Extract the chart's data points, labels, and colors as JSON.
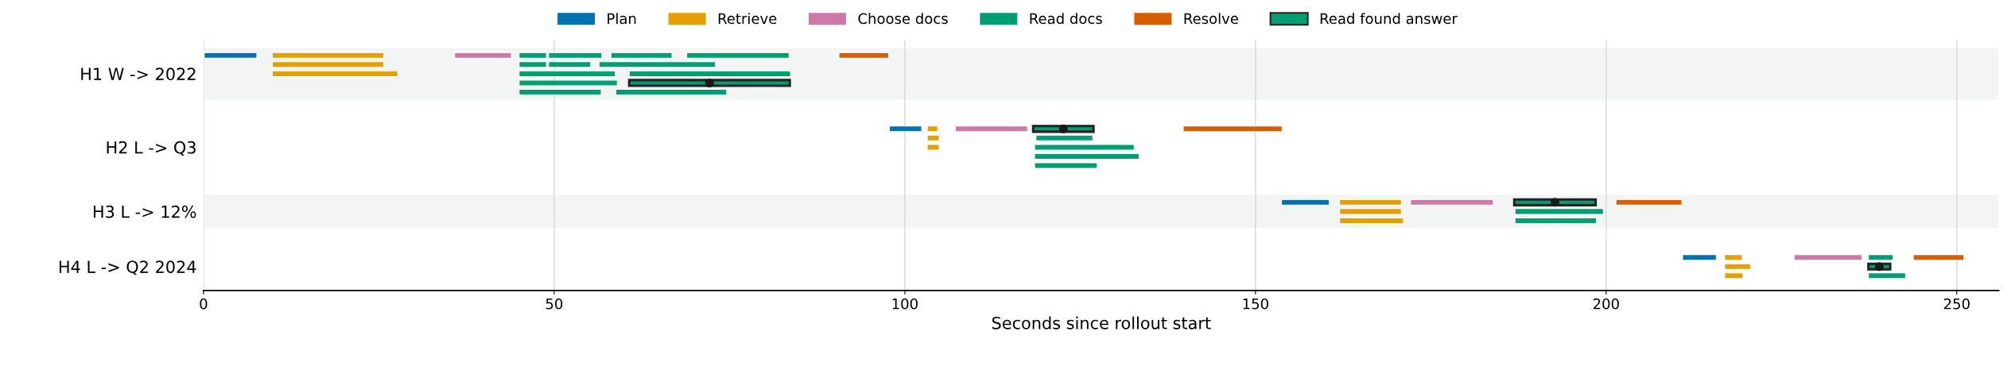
{
  "chart_data": {
    "type": "bar",
    "orientation": "horizontal",
    "xlabel": "Seconds since rollout start",
    "categories": [
      null,
      null,
      "H1 W -> 2022",
      null,
      null,
      null,
      null,
      null,
      null,
      null,
      "H2 L -> Q3",
      null,
      null,
      null,
      null,
      null,
      null,
      "H3 L -> 12%",
      null,
      null,
      null,
      null,
      null,
      "H4 L -> Q2 2024",
      null
    ],
    "xlim": [
      0,
      256
    ],
    "xticks": [
      0,
      50,
      100,
      150,
      200,
      250
    ],
    "grid": "x",
    "legend": "top",
    "series": [
      {
        "name": "Plan",
        "color": "#0072b2",
        "base": [
          0.1,
          null,
          null,
          null,
          null,
          null,
          null,
          null,
          97.8,
          null,
          null,
          null,
          null,
          null,
          null,
          null,
          153.7,
          null,
          null,
          null,
          null,
          null,
          210.9,
          null,
          null
        ],
        "values": [
          7.5,
          null,
          null,
          null,
          null,
          null,
          null,
          null,
          4.6,
          null,
          null,
          null,
          null,
          null,
          null,
          null,
          6.8,
          null,
          null,
          null,
          null,
          null,
          4.8,
          null,
          null
        ]
      },
      {
        "name": "Retrieve",
        "color": "#e69f00",
        "base": [
          9.8,
          9.8,
          9.8,
          null,
          null,
          null,
          null,
          null,
          103.2,
          103.2,
          103.2,
          null,
          null,
          null,
          null,
          null,
          162.0,
          162.0,
          162.0,
          null,
          null,
          null,
          216.9,
          216.9,
          216.9
        ],
        "values": [
          15.9,
          15.9,
          17.9,
          null,
          null,
          null,
          null,
          null,
          1.5,
          1.7,
          1.7,
          null,
          null,
          null,
          null,
          null,
          8.8,
          8.8,
          9.1,
          null,
          null,
          null,
          2.5,
          3.7,
          2.6
        ]
      },
      {
        "name": "Choose docs",
        "color": "#cc79a7",
        "base": [
          35.8,
          null,
          null,
          null,
          null,
          null,
          null,
          null,
          107.2,
          null,
          null,
          null,
          null,
          null,
          null,
          null,
          172.1,
          null,
          null,
          null,
          null,
          null,
          226.8,
          null,
          null
        ],
        "values": [
          8.1,
          null,
          null,
          null,
          null,
          null,
          null,
          null,
          10.3,
          null,
          null,
          null,
          null,
          null,
          null,
          null,
          11.8,
          null,
          null,
          null,
          null,
          null,
          9.7,
          null,
          null
        ]
      },
      {
        "name": "Read docs",
        "color": "#009e73",
        "base": [
          45.0,
          45.0,
          45.0,
          45.0,
          45.0,
          null,
          null,
          null,
          null,
          118.7,
          118.5,
          118.5,
          118.5,
          null,
          null,
          null,
          null,
          187.0,
          187.0,
          null,
          null,
          null,
          237.4,
          null,
          237.4
        ],
        "values": [
          3.9,
          3.9,
          13.7,
          14.0,
          11.7,
          null,
          null,
          null,
          null,
          8.1,
          14.2,
          14.9,
          8.9,
          null,
          null,
          null,
          null,
          12.6,
          11.6,
          null,
          null,
          null,
          3.5,
          null,
          5.3
        ]
      },
      {
        "color": "#009e73",
        "base": [
          49.2,
          49.2,
          60.7,
          null,
          58.8,
          null,
          null,
          null,
          null,
          null,
          null,
          null,
          null,
          null,
          null,
          null,
          null,
          null,
          null,
          null,
          null,
          null,
          null,
          null,
          null
        ],
        "values": [
          7.6,
          6.0,
          23.0,
          null,
          15.8,
          null,
          null,
          null,
          null,
          null,
          null,
          null,
          null,
          null,
          null,
          null,
          null,
          null,
          null,
          null,
          null,
          null,
          null,
          null,
          null
        ]
      },
      {
        "color": "#009e73",
        "base": [
          58.1,
          56.4,
          null,
          null,
          null,
          null,
          null,
          null,
          null,
          null,
          null,
          null,
          null,
          null,
          null,
          null,
          null,
          null,
          null,
          null,
          null,
          null,
          null,
          null,
          null
        ],
        "values": [
          8.7,
          16.6,
          null,
          null,
          null,
          null,
          null,
          null,
          null,
          null,
          null,
          null,
          null,
          null,
          null,
          null,
          null,
          null,
          null,
          null,
          null,
          null,
          null,
          null,
          null
        ]
      },
      {
        "color": "#009e73",
        "base": [
          68.9,
          null,
          null,
          null,
          null,
          null,
          null,
          null,
          null,
          null,
          null,
          null,
          null,
          null,
          null,
          null,
          null,
          null,
          null,
          null,
          null,
          null,
          null,
          null,
          null
        ],
        "values": [
          14.6,
          null,
          null,
          null,
          null,
          null,
          null,
          null,
          null,
          null,
          null,
          null,
          null,
          null,
          null,
          null,
          null,
          null,
          null,
          null,
          null,
          null,
          null,
          null,
          null
        ]
      },
      {
        "name": "Resolve",
        "color": "#d55e00",
        "base": [
          90.6,
          null,
          null,
          null,
          null,
          null,
          null,
          null,
          139.7,
          null,
          null,
          null,
          null,
          null,
          null,
          null,
          201.4,
          null,
          null,
          null,
          null,
          null,
          243.8,
          null,
          null
        ],
        "values": [
          7.1,
          null,
          null,
          null,
          null,
          null,
          null,
          null,
          14.1,
          null,
          null,
          null,
          null,
          null,
          null,
          null,
          9.4,
          null,
          null,
          null,
          null,
          null,
          7.2,
          null,
          null
        ]
      },
      {
        "name": "Read found answer",
        "color": "#009e73",
        "marker": "circle",
        "base": [
          null,
          null,
          null,
          60.7,
          null,
          null,
          null,
          null,
          118.3,
          null,
          null,
          null,
          null,
          null,
          null,
          null,
          186.9,
          null,
          null,
          null,
          null,
          null,
          null,
          237.4,
          null
        ],
        "values": [
          null,
          null,
          null,
          22.9,
          null,
          null,
          null,
          null,
          8.6,
          null,
          null,
          null,
          null,
          null,
          null,
          null,
          11.6,
          null,
          null,
          null,
          null,
          null,
          null,
          3.1,
          null
        ]
      }
    ]
  }
}
